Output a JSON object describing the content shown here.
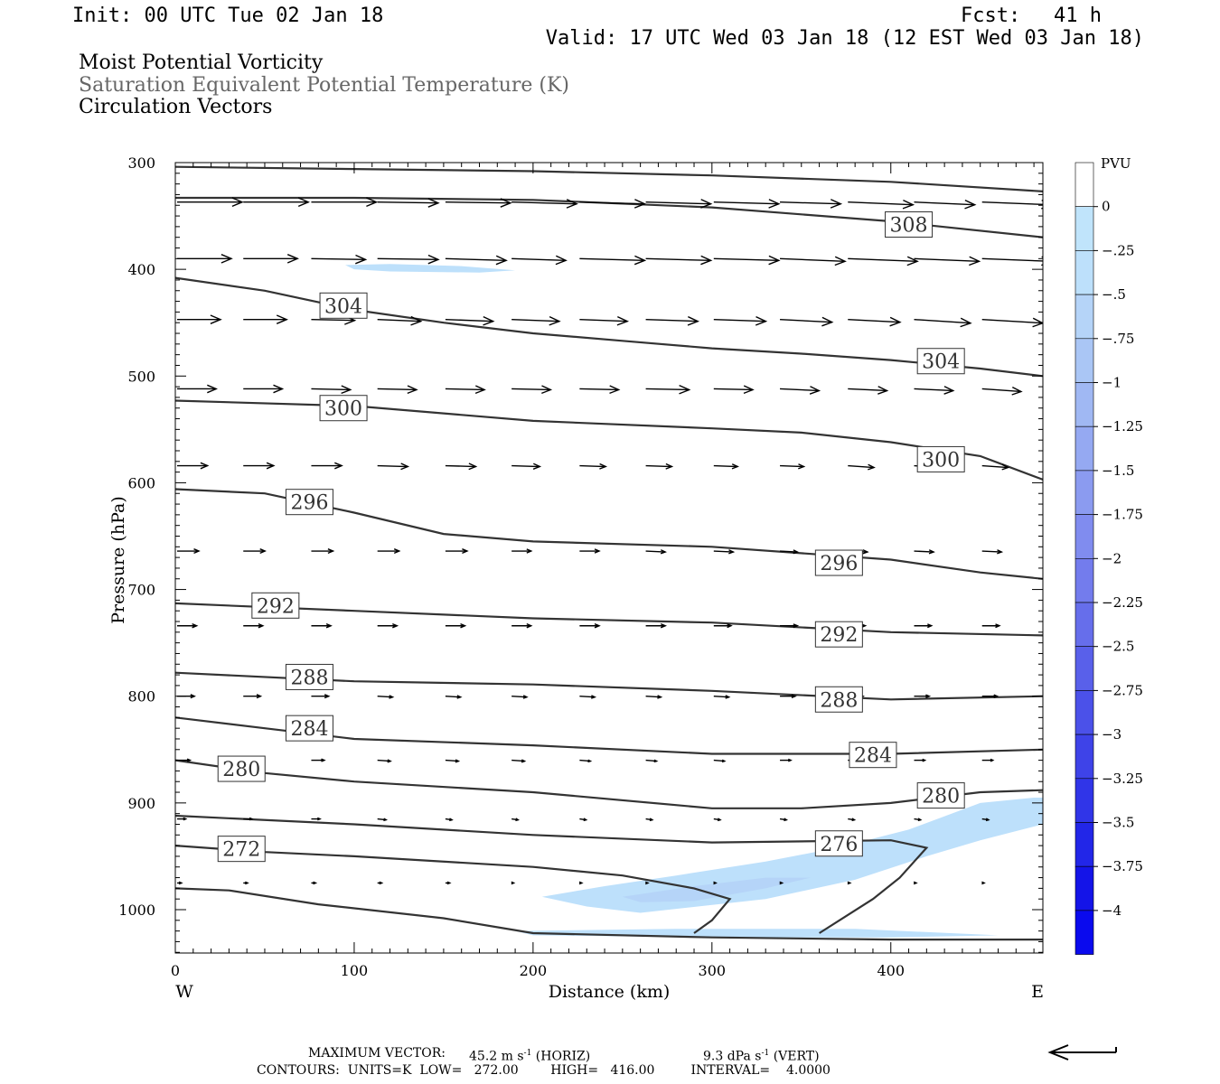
{
  "header": {
    "init": "Init: 00 UTC Tue 02 Jan 18",
    "fcst_label": "Fcst:",
    "fcst_value": "41 h",
    "valid": "Valid: 17 UTC Wed 03 Jan 18 (12 EST Wed 03 Jan 18)"
  },
  "titles": {
    "line1": "Moist Potential Vorticity",
    "line2": "Saturation Equivalent Potential Temperature (K)",
    "line3": "Circulation Vectors"
  },
  "footer": {
    "max_vector_label": "MAXIMUM VECTOR:",
    "max_horiz": "45.2 m s",
    "max_horiz_exp": "-1",
    "max_horiz_unit": "(HORIZ)",
    "max_vert": "9.3 dPa s",
    "max_vert_exp": "-1",
    "max_vert_unit": "(VERT)",
    "contours": "CONTOURS:  UNITS=K  LOW=   272.00        HIGH=   416.00         INTERVAL=    4.0000"
  },
  "colors": {
    "fill_light": "#c0e4fb",
    "fill_mid": "#a8c8f5",
    "contour": "#333333"
  },
  "chart_data": {
    "type": "contour",
    "xlabel": "Distance (km)",
    "ylabel": "Pressure (hPa)",
    "xlim": [
      0,
      485
    ],
    "ylim": [
      1040,
      300
    ],
    "x_ticks": [
      0,
      100,
      200,
      300,
      400
    ],
    "y_ticks": [
      300,
      400,
      500,
      600,
      700,
      800,
      900,
      1000
    ],
    "x_end_labels": {
      "left": "W",
      "right": "E"
    },
    "colorbar": {
      "unit": "PVU",
      "levels": [
        "0",
        "-.25",
        "-.5",
        "-.75",
        "-1",
        "-1.25",
        "-1.5",
        "-1.75",
        "-2",
        "-2.25",
        "-2.5",
        "-2.75",
        "-3",
        "-3.25",
        "-3.5",
        "-3.75",
        "-4"
      ],
      "colors": [
        "#ffffff",
        "#c0e4fb",
        "#bde0fb",
        "#b5d4f8",
        "#aac6f5",
        "#a0b8f3",
        "#95a9f2",
        "#8b9bf0",
        "#808cef",
        "#737ced",
        "#666eeb",
        "#5960ea",
        "#4b51e9",
        "#3e43e8",
        "#3035e8",
        "#2226e8",
        "#1414e8",
        "#0a0aee"
      ]
    },
    "contours": [
      {
        "value": 308,
        "label": "308",
        "label_at": [
          410,
          358
        ],
        "points": [
          [
            0,
            304
          ],
          [
            100,
            306
          ],
          [
            200,
            308
          ],
          [
            300,
            312
          ],
          [
            400,
            318
          ],
          [
            485,
            327
          ]
        ]
      },
      {
        "value": 308,
        "label": "",
        "points": [
          [
            0,
            333
          ],
          [
            100,
            333
          ],
          [
            200,
            335
          ],
          [
            300,
            342
          ],
          [
            400,
            355
          ],
          [
            485,
            370
          ]
        ]
      },
      {
        "value": 304,
        "label": "304",
        "label_at": [
          94,
          434
        ],
        "points": [
          [
            0,
            408
          ],
          [
            50,
            420
          ],
          [
            100,
            438
          ],
          [
            150,
            450
          ],
          [
            200,
            460
          ],
          [
            250,
            467
          ],
          [
            300,
            474
          ],
          [
            350,
            479
          ],
          [
            400,
            485
          ],
          [
            450,
            493
          ],
          [
            485,
            500
          ]
        ]
      },
      {
        "value": 304,
        "label": "304",
        "label_at": [
          428,
          486
        ]
      },
      {
        "value": 300,
        "label": "300",
        "label_at": [
          94,
          530
        ],
        "points": [
          [
            0,
            523
          ],
          [
            100,
            528
          ],
          [
            200,
            542
          ],
          [
            300,
            549
          ],
          [
            350,
            553
          ],
          [
            400,
            562
          ],
          [
            450,
            575
          ],
          [
            485,
            597
          ]
        ]
      },
      {
        "value": 300,
        "label": "300",
        "label_at": [
          428,
          578
        ]
      },
      {
        "value": 296,
        "label": "296",
        "label_at": [
          75,
          618
        ],
        "points": [
          [
            0,
            606
          ],
          [
            50,
            610
          ],
          [
            100,
            628
          ],
          [
            150,
            648
          ],
          [
            200,
            655
          ],
          [
            300,
            660
          ],
          [
            400,
            672
          ],
          [
            450,
            684
          ],
          [
            485,
            690
          ]
        ]
      },
      {
        "value": 296,
        "label": "296",
        "label_at": [
          371,
          675
        ]
      },
      {
        "value": 292,
        "label": "292",
        "label_at": [
          56,
          715
        ],
        "points": [
          [
            0,
            713
          ],
          [
            100,
            720
          ],
          [
            200,
            727
          ],
          [
            300,
            731
          ],
          [
            400,
            740
          ],
          [
            485,
            743
          ]
        ]
      },
      {
        "value": 292,
        "label": "292",
        "label_at": [
          371,
          742
        ]
      },
      {
        "value": 288,
        "label": "288",
        "label_at": [
          75,
          782
        ],
        "points": [
          [
            0,
            778
          ],
          [
            100,
            786
          ],
          [
            200,
            789
          ],
          [
            300,
            795
          ],
          [
            400,
            803
          ],
          [
            485,
            800
          ]
        ]
      },
      {
        "value": 288,
        "label": "288",
        "label_at": [
          371,
          803
        ]
      },
      {
        "value": 284,
        "label": "284",
        "label_at": [
          75,
          830
        ],
        "points": [
          [
            0,
            820
          ],
          [
            50,
            830
          ],
          [
            100,
            840
          ],
          [
            200,
            846
          ],
          [
            300,
            854
          ],
          [
            400,
            854
          ],
          [
            485,
            850
          ]
        ]
      },
      {
        "value": 284,
        "label": "284",
        "label_at": [
          390,
          855
        ]
      },
      {
        "value": 280,
        "label": "280",
        "label_at": [
          37,
          868
        ],
        "points": [
          [
            0,
            860
          ],
          [
            50,
            872
          ],
          [
            100,
            880
          ],
          [
            200,
            890
          ],
          [
            300,
            905
          ],
          [
            350,
            905
          ],
          [
            400,
            900
          ],
          [
            450,
            890
          ],
          [
            485,
            888
          ]
        ]
      },
      {
        "value": 280,
        "label": "280",
        "label_at": [
          428,
          893
        ]
      },
      {
        "value": 276,
        "label": "",
        "points": [
          [
            0,
            912
          ],
          [
            100,
            920
          ],
          [
            200,
            930
          ],
          [
            300,
            937
          ],
          [
            400,
            935
          ],
          [
            420,
            942
          ],
          [
            405,
            970
          ],
          [
            390,
            990
          ],
          [
            360,
            1022
          ]
        ]
      },
      {
        "value": 276,
        "label": "276",
        "label_at": [
          371,
          938
        ]
      },
      {
        "value": 272,
        "label": "272",
        "label_at": [
          37,
          943
        ],
        "points": [
          [
            0,
            940
          ],
          [
            50,
            946
          ],
          [
            100,
            950
          ],
          [
            200,
            960
          ],
          [
            250,
            968
          ],
          [
            290,
            980
          ],
          [
            310,
            990
          ],
          [
            300,
            1010
          ],
          [
            290,
            1022
          ]
        ]
      },
      {
        "value": 272,
        "label": "",
        "points": [
          [
            0,
            980
          ],
          [
            30,
            982
          ],
          [
            80,
            995
          ],
          [
            150,
            1008
          ],
          [
            200,
            1022
          ],
          [
            300,
            1026
          ],
          [
            400,
            1028
          ],
          [
            485,
            1028
          ]
        ]
      }
    ],
    "shaded_regions": [
      {
        "level": "-.25",
        "points": [
          [
            95,
            396
          ],
          [
            120,
            395
          ],
          [
            160,
            397
          ],
          [
            190,
            401
          ],
          [
            170,
            403
          ],
          [
            120,
            402
          ],
          [
            100,
            400
          ]
        ]
      },
      {
        "level": "-.25",
        "points": [
          [
            205,
            988
          ],
          [
            240,
            978
          ],
          [
            280,
            968
          ],
          [
            330,
            955
          ],
          [
            370,
            942
          ],
          [
            410,
            925
          ],
          [
            450,
            900
          ],
          [
            480,
            895
          ],
          [
            485,
            895
          ],
          [
            485,
            920
          ],
          [
            450,
            935
          ],
          [
            420,
            950
          ],
          [
            380,
            972
          ],
          [
            330,
            990
          ],
          [
            260,
            1003
          ],
          [
            230,
            997
          ]
        ]
      },
      {
        "level": "-.5",
        "points": [
          [
            250,
            988
          ],
          [
            290,
            978
          ],
          [
            330,
            970
          ],
          [
            355,
            970
          ],
          [
            330,
            980
          ],
          [
            290,
            992
          ],
          [
            260,
            993
          ]
        ]
      },
      {
        "level": "-.25",
        "points": [
          [
            190,
            1020
          ],
          [
            280,
            1018
          ],
          [
            380,
            1018
          ],
          [
            460,
            1024
          ],
          [
            400,
            1026
          ],
          [
            300,
            1026
          ],
          [
            200,
            1024
          ]
        ]
      }
    ],
    "vector_rows": [
      {
        "p": 337,
        "x": [
          0,
          37,
          75,
          112,
          150,
          187,
          225,
          262,
          300,
          337,
          375,
          412,
          450,
          485
        ],
        "u": [
          30,
          30,
          30,
          28,
          30,
          30,
          30,
          30,
          30,
          28,
          30,
          28,
          32,
          30
        ],
        "v": [
          0,
          0,
          0,
          1,
          1,
          2,
          2,
          2,
          2,
          2,
          3,
          3,
          3,
          4
        ]
      },
      {
        "p": 390,
        "x": [
          0,
          37,
          75,
          112,
          150,
          187,
          225,
          262,
          300,
          337,
          375,
          412,
          450,
          485
        ],
        "u": [
          25,
          25,
          25,
          28,
          28,
          25,
          30,
          30,
          30,
          30,
          32,
          30,
          32,
          32
        ],
        "v": [
          0,
          0,
          1,
          1,
          2,
          2,
          2,
          2,
          2,
          3,
          3,
          3,
          3,
          4
        ]
      },
      {
        "p": 447,
        "x": [
          0,
          37,
          75,
          112,
          150,
          187,
          225,
          262,
          300,
          337,
          375,
          412,
          450
        ],
        "u": [
          20,
          20,
          20,
          20,
          22,
          22,
          22,
          24,
          24,
          24,
          24,
          26,
          28
        ],
        "v": [
          0,
          0,
          1,
          2,
          2,
          2,
          2,
          2,
          2,
          3,
          3,
          4,
          4
        ]
      },
      {
        "p": 512,
        "x": [
          0,
          37,
          75,
          112,
          150,
          187,
          225,
          262,
          300,
          337,
          375,
          412,
          450
        ],
        "u": [
          18,
          18,
          18,
          18,
          18,
          18,
          18,
          20,
          18,
          18,
          18,
          18,
          18
        ],
        "v": [
          0,
          0,
          1,
          1,
          1,
          1,
          1,
          1,
          1,
          2,
          2,
          2,
          3
        ]
      },
      {
        "p": 584,
        "x": [
          0,
          37,
          75,
          112,
          150,
          187,
          225,
          262,
          300,
          337,
          375,
          412,
          450
        ],
        "u": [
          14,
          14,
          14,
          14,
          14,
          13,
          12,
          12,
          11,
          11,
          12,
          12,
          12
        ],
        "v": [
          0,
          0,
          0,
          1,
          1,
          1,
          1,
          1,
          1,
          1,
          2,
          2,
          2
        ]
      },
      {
        "p": 664,
        "x": [
          0,
          37,
          75,
          112,
          150,
          187,
          225,
          262,
          300,
          337,
          375,
          412,
          450
        ],
        "u": [
          10,
          10,
          10,
          10,
          10,
          9,
          9,
          9,
          9,
          8,
          9,
          9,
          9
        ],
        "v": [
          0,
          0,
          0,
          0,
          0,
          0,
          0,
          1,
          1,
          1,
          1,
          1,
          1
        ]
      },
      {
        "p": 734,
        "x": [
          0,
          37,
          75,
          112,
          150,
          187,
          225,
          262,
          300,
          337,
          375,
          412,
          450
        ],
        "u": [
          9,
          9,
          9,
          9,
          9,
          9,
          9,
          9,
          8,
          8,
          8,
          8,
          8
        ],
        "v": [
          0,
          0,
          0,
          0,
          0,
          0,
          0,
          0,
          0,
          0,
          0,
          0,
          0
        ]
      },
      {
        "p": 800,
        "x": [
          0,
          37,
          75,
          112,
          150,
          187,
          225,
          262,
          300,
          337,
          375,
          412,
          450
        ],
        "u": [
          8,
          8,
          8,
          7,
          7,
          7,
          7,
          7,
          7,
          7,
          7,
          7,
          7
        ],
        "v": [
          0,
          0,
          0,
          1,
          1,
          1,
          1,
          1,
          1,
          0,
          0,
          0,
          0
        ]
      },
      {
        "p": 860,
        "x": [
          0,
          37,
          75,
          112,
          150,
          187,
          225,
          262,
          300,
          337,
          375,
          412,
          450
        ],
        "u": [
          6,
          6,
          6,
          6,
          6,
          6,
          5,
          5,
          5,
          5,
          5,
          5,
          5
        ],
        "v": [
          0,
          0,
          0,
          1,
          1,
          1,
          1,
          1,
          1,
          0,
          0,
          0,
          0
        ]
      },
      {
        "p": 915,
        "x": [
          0,
          37,
          75,
          112,
          150,
          187,
          225,
          262,
          300,
          337,
          375,
          412,
          450
        ],
        "u": [
          4,
          4,
          4,
          4,
          3,
          3,
          3,
          3,
          3,
          3,
          3,
          3,
          3
        ],
        "v": [
          0,
          0,
          0,
          1,
          1,
          1,
          1,
          1,
          1,
          1,
          1,
          1,
          1
        ]
      },
      {
        "p": 975,
        "x": [
          0,
          37,
          75,
          112,
          150,
          187,
          225,
          262,
          300,
          337,
          375,
          412,
          450
        ],
        "u": [
          2,
          2,
          2,
          2,
          2,
          1,
          1,
          1,
          1,
          1,
          1,
          1,
          1
        ],
        "v": [
          0,
          0,
          0,
          0,
          0,
          0,
          0,
          0,
          0,
          0,
          0,
          0,
          0
        ]
      }
    ]
  }
}
